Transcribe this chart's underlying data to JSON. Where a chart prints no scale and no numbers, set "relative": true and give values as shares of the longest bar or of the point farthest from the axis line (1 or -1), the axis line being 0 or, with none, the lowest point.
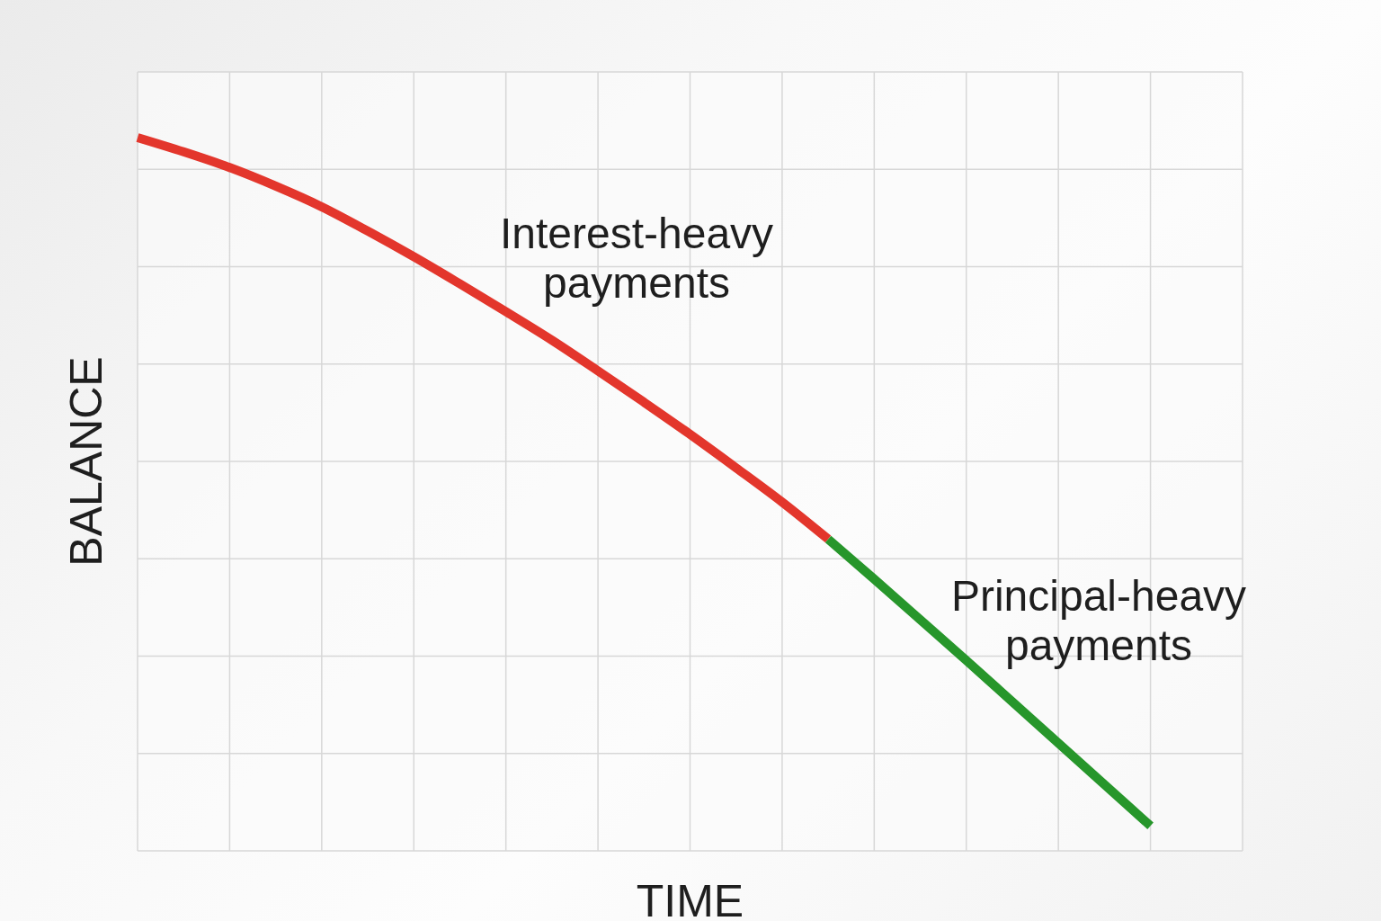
{
  "chart_data": {
    "type": "line",
    "xlabel": "TIME",
    "ylabel": "BALANCE",
    "relative": true,
    "grid": true,
    "marker": "none",
    "line_style": "solid",
    "categories": [
      null,
      null,
      null,
      null,
      null,
      null,
      null,
      null,
      null,
      null,
      null,
      null,
      null,
      null,
      null,
      null,
      null,
      null,
      null,
      null,
      null,
      null,
      null,
      null,
      null
    ],
    "series": [
      {
        "name": "Interest-heavy payments",
        "color": "#e3362c",
        "values": [
          1,
          0.98,
          0.958,
          0.932,
          0.903,
          0.869,
          0.833,
          0.795,
          0.756,
          0.716,
          0.673,
          0.629,
          0.584,
          0.537,
          0.489,
          0.437,
          null,
          null,
          null,
          null,
          null,
          null,
          null,
          null,
          null
        ]
      },
      {
        "name": "Principal-heavy payments",
        "color": "#27962b",
        "values": [
          null,
          null,
          null,
          null,
          null,
          null,
          null,
          null,
          null,
          null,
          null,
          null,
          null,
          null,
          null,
          0.437,
          0.381,
          0.324,
          0.267,
          0.209,
          0.151,
          0.093,
          0.035,
          null,
          null
        ]
      }
    ]
  }
}
